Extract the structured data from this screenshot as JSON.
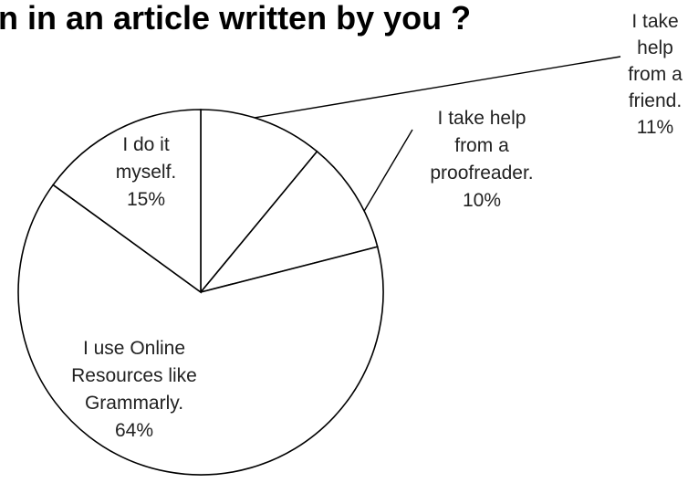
{
  "chart_data": {
    "type": "pie",
    "title": "n in an article written by you  ?",
    "slices": [
      {
        "label_lines": [
          "I take",
          "help",
          "from a",
          "friend."
        ],
        "value": 11,
        "value_label": "11%"
      },
      {
        "label_lines": [
          "I take help",
          "from a",
          "proofreader."
        ],
        "value": 10,
        "value_label": "10%"
      },
      {
        "label_lines": [
          "I use Online",
          "Resources like",
          "Grammarly."
        ],
        "value": 64,
        "value_label": "64%"
      },
      {
        "label_lines": [
          "I do it",
          "myself."
        ],
        "value": 15,
        "value_label": "15%"
      }
    ],
    "legend": "none",
    "colors": {
      "fill": "#ffffff",
      "stroke": "#000000"
    }
  }
}
